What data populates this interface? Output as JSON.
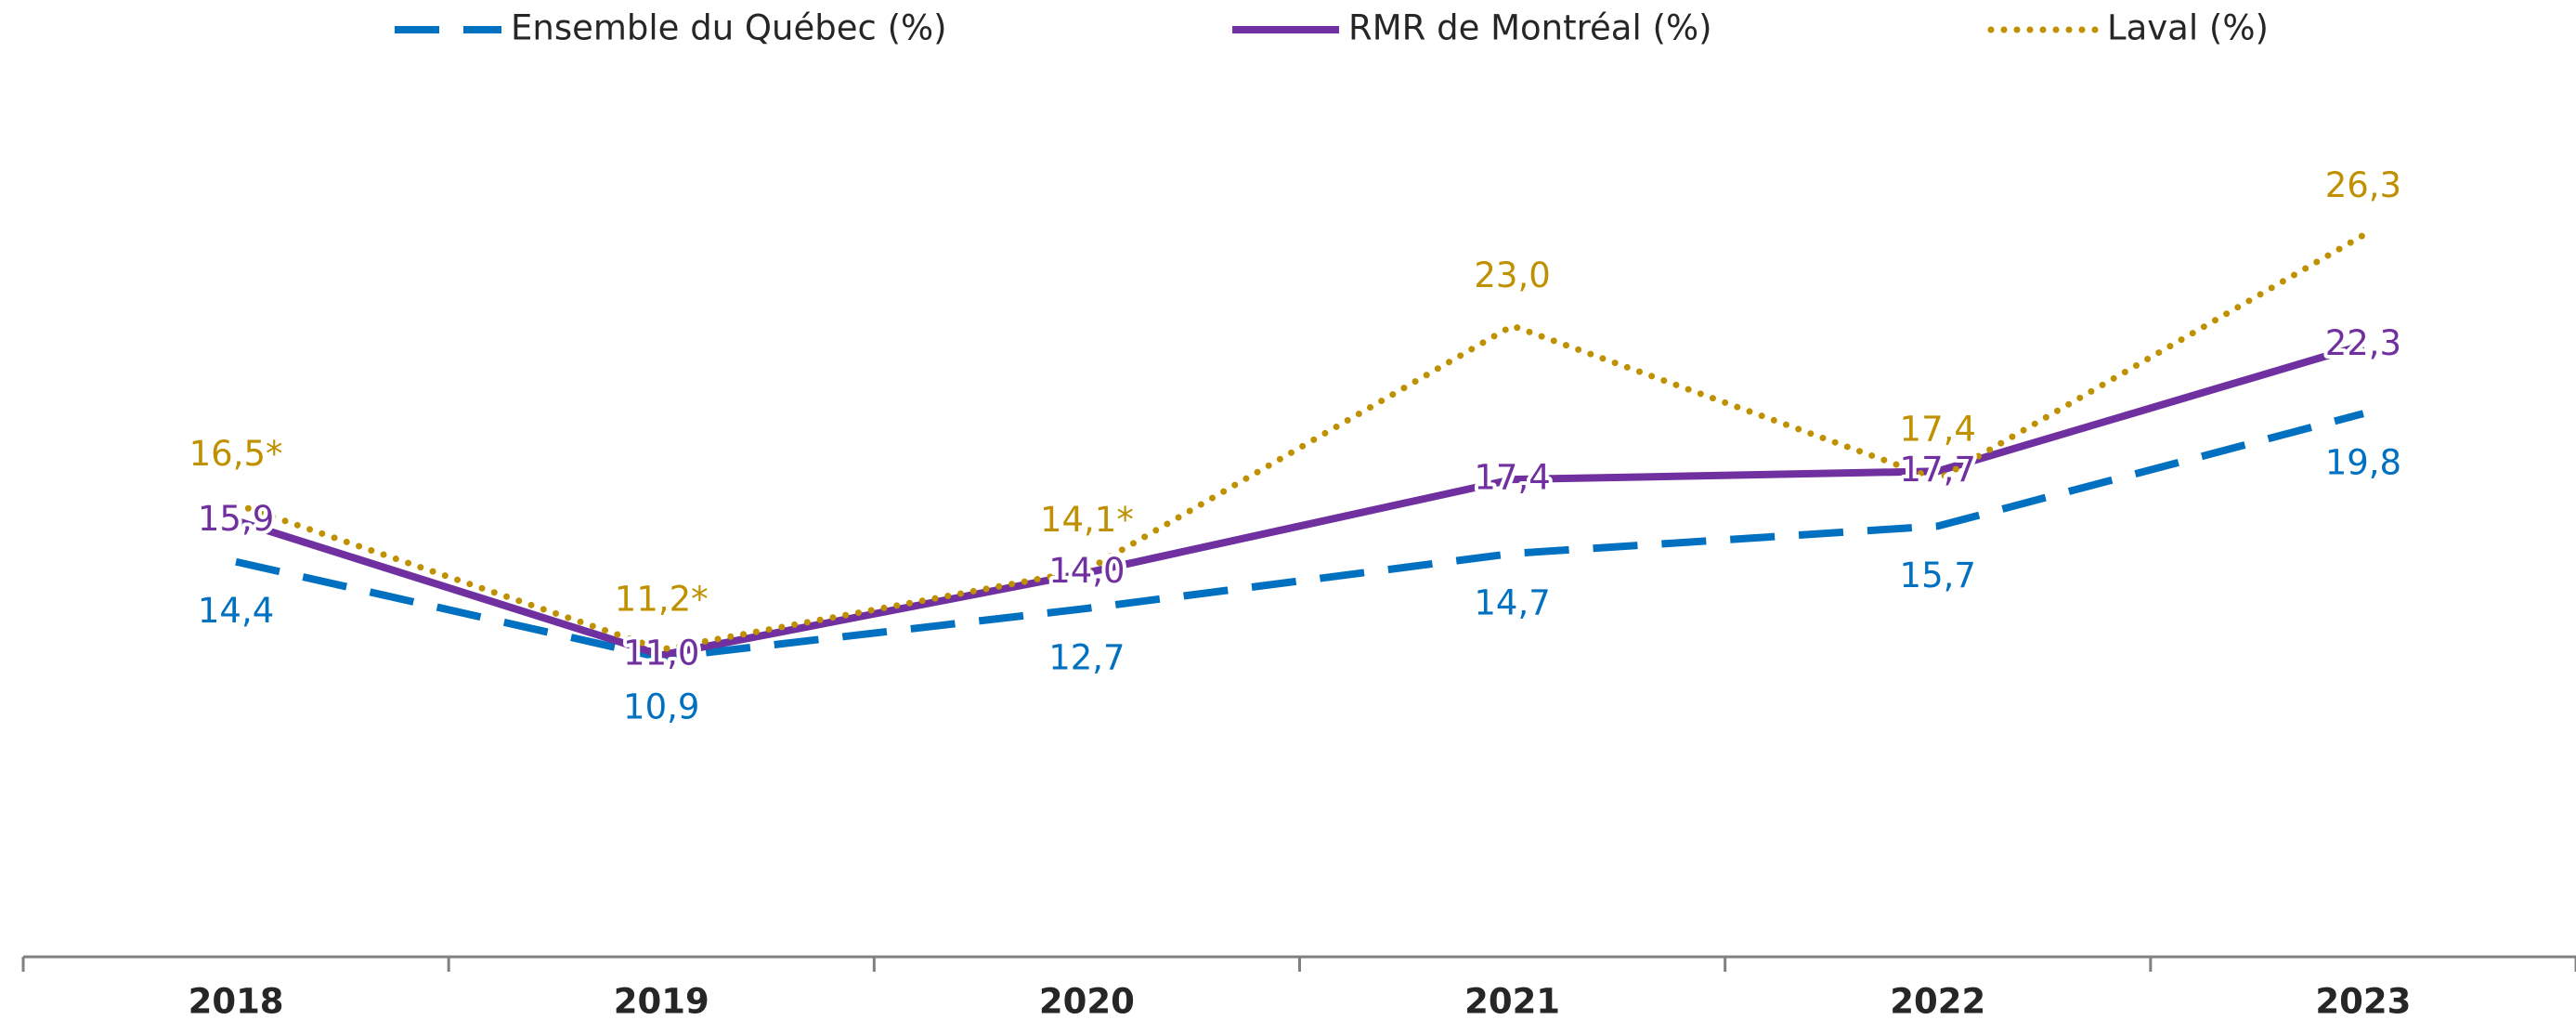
{
  "chart_data": {
    "type": "line",
    "categories": [
      "2018",
      "2019",
      "2020",
      "2021",
      "2022",
      "2023"
    ],
    "ylim": [
      0,
      30
    ],
    "legend": "top",
    "series": [
      {
        "name": "Ensemble du Québec (%)",
        "color": "#0070c0",
        "line_style": "dashed",
        "values": [
          14.4,
          10.9,
          12.7,
          14.7,
          15.7,
          19.8
        ],
        "value_labels": [
          "14,4",
          "10,9",
          "12,7",
          "14,7",
          "15,7",
          "19,8"
        ]
      },
      {
        "name": "RMR de Montréal (%)",
        "color": "#7030a0",
        "line_style": "solid",
        "values": [
          15.9,
          11.0,
          14.0,
          17.4,
          17.7,
          22.3
        ],
        "value_labels": [
          "15,9",
          "11,0",
          "14,0",
          "17,4",
          "17,7",
          "22,3"
        ]
      },
      {
        "name": "Laval (%)",
        "color": "#bf9000",
        "line_style": "dotted",
        "values": [
          16.5,
          11.2,
          14.1,
          23.0,
          17.4,
          26.3
        ],
        "value_labels": [
          "16,5*",
          "11,2*",
          "14,1*",
          "23,0",
          "17,4",
          "26,3"
        ]
      }
    ]
  }
}
